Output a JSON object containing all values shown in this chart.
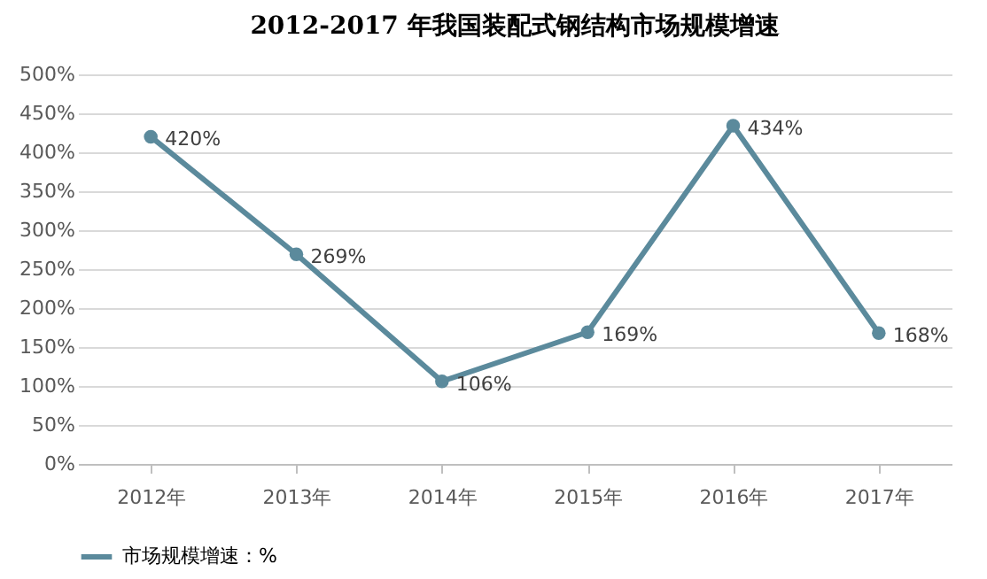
{
  "chart_data": {
    "type": "line",
    "title": "2012-2017 年我国装配式钢结构市场规模增速",
    "categories": [
      "2012年",
      "2013年",
      "2014年",
      "2015年",
      "2016年",
      "2017年"
    ],
    "series": [
      {
        "name": "市场规模增速：%",
        "color": "#5b8a9c",
        "values": [
          420,
          269,
          106,
          169,
          434,
          168
        ],
        "value_labels": [
          "420%",
          "269%",
          "106%",
          "169%",
          "434%",
          "168%"
        ]
      }
    ],
    "ylim": [
      0,
      500
    ],
    "yticks": [
      {
        "value": 0,
        "label": "0%"
      },
      {
        "value": 50,
        "label": "50%"
      },
      {
        "value": 100,
        "label": "100%"
      },
      {
        "value": 150,
        "label": "150%"
      },
      {
        "value": 200,
        "label": "200%"
      },
      {
        "value": 250,
        "label": "250%"
      },
      {
        "value": 300,
        "label": "300%"
      },
      {
        "value": 350,
        "label": "350%"
      },
      {
        "value": 400,
        "label": "400%"
      },
      {
        "value": 450,
        "label": "450%"
      },
      {
        "value": 500,
        "label": "500%"
      }
    ],
    "grid": "y",
    "legend": "bottom",
    "marker": "circle",
    "line_style": "solid"
  }
}
